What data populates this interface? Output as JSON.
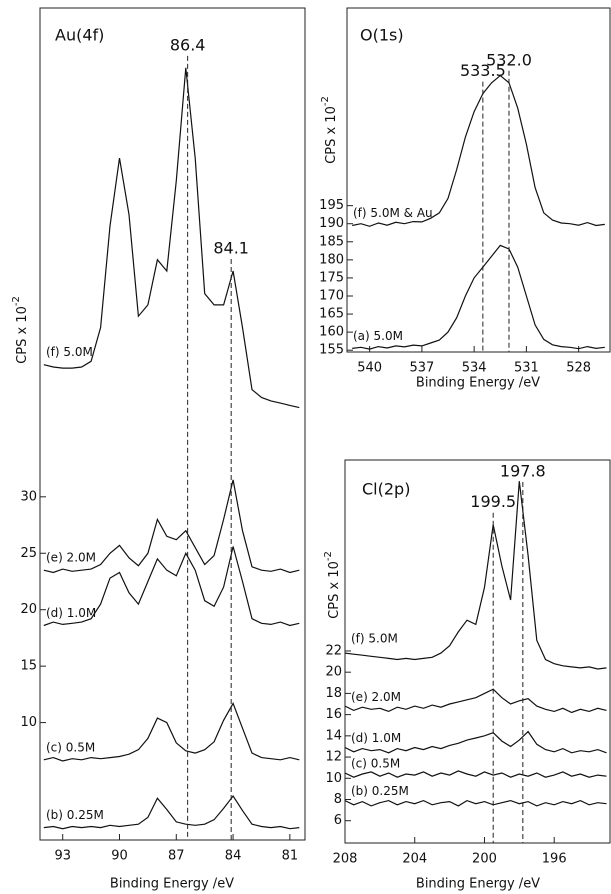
{
  "chart_data": [
    {
      "type": "line",
      "title": "Au(4f)",
      "x_label": "Binding Energy /eV",
      "y_label": "CPS x 10",
      "y_label_exponent": "-2",
      "xlim": [
        94.2,
        80.2
      ],
      "xticks": [
        93,
        90,
        87,
        84,
        81
      ],
      "ylim": [
        -0.4,
        73.3
      ],
      "yticks": [
        10,
        15,
        20,
        25,
        30
      ],
      "peak_lines": [
        86.4,
        84.1
      ],
      "color": "#111111",
      "x": [
        94,
        93.5,
        93,
        92.5,
        92,
        91.5,
        91,
        90.5,
        90,
        89.5,
        89,
        88.5,
        88,
        87.5,
        87,
        86.5,
        86,
        85.5,
        85,
        84.5,
        84,
        83.5,
        83,
        82.5,
        82,
        81.5,
        81,
        80.5
      ],
      "series": [
        {
          "name": "(f) 5.0M",
          "values": [
            41.7,
            41.5,
            41.4,
            41.4,
            41.5,
            42,
            45,
            54,
            60,
            55,
            46,
            47,
            51,
            50,
            58,
            68,
            60,
            48,
            47,
            47,
            50,
            45,
            39.5,
            38.8,
            38.5,
            38.3,
            38.1,
            37.9
          ]
        },
        {
          "name": "(e) 2.0M",
          "values": [
            23.5,
            23.3,
            23.6,
            23.4,
            23.5,
            23.6,
            24,
            25,
            25.7,
            24.6,
            23.9,
            25,
            28,
            26.5,
            26.2,
            27,
            25.5,
            24,
            24.8,
            28,
            31.5,
            27,
            23.8,
            23.5,
            23.4,
            23.6,
            23.3,
            23.5
          ]
        },
        {
          "name": "(d) 1.0M",
          "values": [
            18.6,
            18.9,
            18.7,
            18.8,
            18.9,
            19.2,
            20.5,
            22.8,
            23.3,
            21.5,
            20.5,
            22.5,
            24.5,
            23.5,
            23,
            25,
            23.5,
            20.8,
            20.3,
            22,
            25.6,
            22.5,
            19.2,
            18.8,
            18.7,
            18.9,
            18.6,
            18.8
          ]
        },
        {
          "name": "(c) 0.5M",
          "values": [
            6.7,
            6.9,
            6.6,
            6.8,
            6.7,
            6.9,
            6.8,
            6.9,
            7,
            7.2,
            7.6,
            8.6,
            10.4,
            10,
            8.2,
            7.5,
            7.3,
            7.6,
            8.3,
            10.2,
            11.7,
            9.5,
            7.3,
            6.9,
            6.8,
            6.7,
            6.9,
            6.7
          ]
        },
        {
          "name": "(b) 0.25M",
          "values": [
            0.7,
            0.8,
            0.6,
            0.8,
            0.7,
            0.8,
            0.7,
            0.9,
            0.8,
            0.9,
            1,
            1.6,
            3.3,
            2.3,
            1.2,
            1,
            0.9,
            1,
            1.4,
            2.4,
            3.5,
            2.2,
            1,
            0.8,
            0.7,
            0.8,
            0.6,
            0.7
          ]
        }
      ]
    },
    {
      "type": "line",
      "title": "O(1s)",
      "x_label": "Binding Energy /eV",
      "y_label": "CPS x 10",
      "y_label_exponent": "-2",
      "xlim": [
        541.3,
        526.2
      ],
      "xticks": [
        540,
        537,
        534,
        531,
        528
      ],
      "ylim": [
        154.5,
        249.7
      ],
      "yticks": [
        155,
        160,
        165,
        170,
        175,
        180,
        185,
        190,
        195
      ],
      "peak_lines": [
        533.5,
        {
          "value": 532,
          "label": "532.0"
        }
      ],
      "color": "#111111",
      "x": [
        541,
        540.5,
        540,
        539.5,
        539,
        538.5,
        538,
        537.5,
        537,
        536.5,
        536,
        535.5,
        535,
        534.5,
        534,
        533.5,
        533,
        532.5,
        532,
        531.5,
        531,
        530.5,
        530,
        529.5,
        529,
        528.5,
        528,
        527.5,
        527,
        526.5
      ],
      "series": [
        {
          "name": "(f) 5.0M & Au",
          "values": [
            189.5,
            190,
            189.3,
            190.2,
            189.6,
            190.4,
            190,
            190.6,
            190.5,
            191.5,
            193,
            197,
            205,
            214,
            221,
            226,
            229,
            231,
            229,
            222,
            212,
            200,
            193,
            191,
            190.2,
            190,
            189.6,
            190.3,
            189.5,
            189.8
          ]
        },
        {
          "name": "(a) 5.0M",
          "values": [
            155.5,
            155.8,
            155.3,
            156,
            155.6,
            156.2,
            155.9,
            156.4,
            156.2,
            157,
            157.8,
            160,
            164,
            170,
            175,
            178,
            181,
            184,
            183,
            178,
            170,
            162,
            158,
            156.5,
            156,
            155.8,
            155.4,
            156,
            155.5,
            155.8
          ]
        }
      ]
    },
    {
      "type": "line",
      "title": "Cl(2p)",
      "x_label": "Binding Energy /eV",
      "y_label": "CPS x 10",
      "y_label_exponent": "-2",
      "xlim": [
        208,
        192.8
      ],
      "xticks": [
        208,
        204,
        200,
        196
      ],
      "ylim": [
        3.9,
        40
      ],
      "yticks": [
        6,
        8,
        10,
        12,
        14,
        16,
        18,
        20,
        22
      ],
      "peak_lines": [
        199.5,
        197.8
      ],
      "color": "#111111",
      "x": [
        208.5,
        208,
        207.5,
        207,
        206.5,
        206,
        205.5,
        205,
        204.5,
        204,
        203.5,
        203,
        202.5,
        202,
        201.5,
        201,
        200.5,
        200,
        199.5,
        199,
        198.5,
        198,
        197.5,
        197,
        196.5,
        196,
        195.5,
        195,
        194.5,
        194,
        193.5,
        193
      ],
      "series": [
        {
          "name": "(f) 5.0M",
          "values": [
            22,
            21.8,
            21.7,
            21.6,
            21.5,
            21.4,
            21.3,
            21.2,
            21.3,
            21.2,
            21.3,
            21.4,
            21.8,
            22.5,
            23.8,
            24.9,
            24.5,
            28,
            33.9,
            30,
            26.8,
            38,
            31,
            23,
            21.2,
            20.8,
            20.6,
            20.5,
            20.4,
            20.5,
            20.3,
            20.4
          ]
        },
        {
          "name": "(e) 2.0M",
          "values": [
            16.5,
            16.8,
            16.4,
            16.7,
            16.5,
            16.6,
            16.3,
            16.7,
            16.5,
            16.8,
            16.6,
            16.9,
            16.7,
            17,
            17.2,
            17.4,
            17.6,
            18,
            18.4,
            17.6,
            17,
            17.3,
            17.5,
            16.8,
            16.5,
            16.3,
            16.6,
            16.2,
            16.5,
            16.3,
            16.6,
            16.4
          ]
        },
        {
          "name": "(d) 1.0M",
          "values": [
            12.6,
            12.9,
            12.5,
            12.8,
            12.6,
            12.7,
            12.4,
            12.8,
            12.6,
            12.9,
            12.7,
            13,
            12.8,
            13.1,
            13.3,
            13.6,
            13.8,
            14,
            14.3,
            13.5,
            13,
            13.6,
            14.4,
            13.2,
            12.7,
            12.5,
            12.8,
            12.4,
            12.6,
            12.5,
            12.7,
            12.4
          ]
        },
        {
          "name": "(c) 0.5M",
          "values": [
            10.2,
            10.5,
            10.1,
            10.4,
            10.6,
            10.2,
            10.5,
            10.1,
            10.4,
            10.3,
            10.6,
            10.2,
            10.5,
            10.3,
            10.7,
            10.4,
            10.2,
            10.6,
            10.3,
            10.5,
            10.1,
            10.4,
            10.2,
            10.5,
            10.1,
            10.3,
            10.6,
            10.2,
            10.4,
            10.1,
            10.3,
            10.2
          ]
        },
        {
          "name": "(b) 0.25M",
          "values": [
            7.6,
            7.9,
            7.5,
            7.8,
            7.4,
            7.7,
            7.9,
            7.5,
            7.8,
            7.6,
            7.9,
            7.5,
            7.7,
            7.8,
            7.4,
            7.9,
            7.6,
            7.8,
            7.5,
            7.7,
            7.9,
            7.6,
            7.8,
            7.4,
            7.7,
            7.5,
            7.8,
            7.6,
            7.9,
            7.5,
            7.7,
            7.6
          ]
        }
      ]
    }
  ]
}
